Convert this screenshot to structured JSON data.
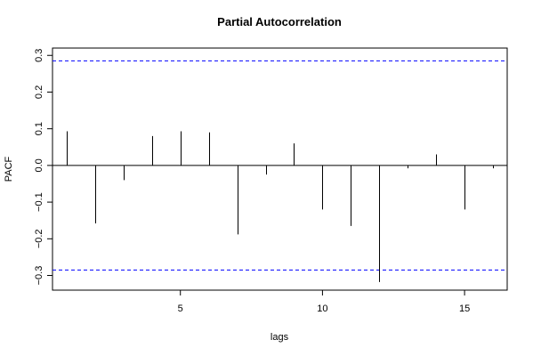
{
  "chart_data": {
    "type": "bar",
    "title": "Partial Autocorrelation",
    "xlabel": "lags",
    "ylabel": "PACF",
    "xlim": [
      0.5,
      16.5
    ],
    "ylim": [
      -0.34,
      0.32
    ],
    "x_ticks": [
      5,
      10,
      15
    ],
    "y_ticks": [
      -0.3,
      -0.2,
      -0.1,
      0.0,
      0.1,
      0.2,
      0.3
    ],
    "x_tick_labels": [
      "5",
      "10",
      "15"
    ],
    "y_tick_labels": [
      "−0.3",
      "−0.2",
      "−0.1",
      "0.0",
      "0.1",
      "0.2",
      "0.3"
    ],
    "lags": [
      1,
      2,
      3,
      4,
      5,
      6,
      7,
      8,
      9,
      10,
      11,
      12,
      13,
      14,
      15,
      16
    ],
    "values": [
      0.093,
      -0.158,
      -0.04,
      0.08,
      0.093,
      0.09,
      -0.188,
      -0.025,
      0.06,
      -0.12,
      -0.165,
      -0.318,
      -0.008,
      0.03,
      -0.12,
      -0.008
    ],
    "confidence_bound": 0.285,
    "bar_color": "#000000",
    "bound_color": "#0000ff",
    "grid": false
  }
}
